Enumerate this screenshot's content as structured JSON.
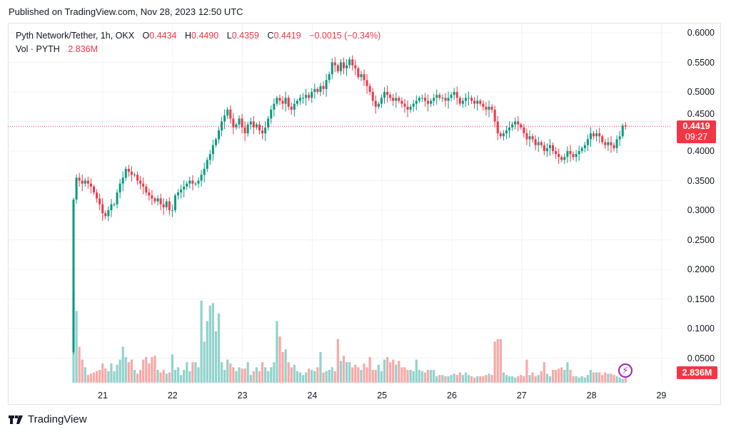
{
  "header": {
    "published": "Published on TradingView.com, Nov 28, 2023 12:50 UTC"
  },
  "legend": {
    "symbol": "Pyth Network/Tether, 1h, OKX",
    "o_label": "O",
    "o": "0.4434",
    "h_label": "H",
    "h": "0.4490",
    "l_label": "L",
    "l": "0.4359",
    "c_label": "C",
    "c": "0.4419",
    "change": "−0.0015 (−0.34%)",
    "vol_label": "Vol · PYTH",
    "vol": "2.836M"
  },
  "price_box": {
    "price": "0.4419",
    "countdown": "09:27"
  },
  "volume_box": {
    "value": "2.836M"
  },
  "footer": {
    "brand": "TradingView"
  },
  "colors": {
    "up": "#089981",
    "down": "#f23645",
    "up_vol": "#92d2cc",
    "down_vol": "#f7a9a7",
    "grid": "#f0f3fa",
    "alert": "#9c27b0"
  },
  "chart_data": {
    "type": "candlestick",
    "title": "Pyth Network/Tether, 1h, OKX",
    "interval": "1h",
    "start": "Nov 20 14:00",
    "ylim": [
      0,
      0.6
    ],
    "y_ticks": [
      "0.6000",
      "0.5500",
      "0.5000",
      "0.4500",
      "0.4000",
      "0.3500",
      "0.3000",
      "0.2500",
      "0.2000",
      "0.1500",
      "0.1000",
      "0.0500"
    ],
    "x_ticks": [
      "21",
      "22",
      "23",
      "24",
      "25",
      "26",
      "27",
      "28",
      "29"
    ],
    "first_open": 0.06,
    "last": {
      "open": 0.4434,
      "high": 0.449,
      "low": 0.4359,
      "close": 0.4419
    },
    "close": [
      0.318,
      0.355,
      0.35,
      0.345,
      0.35,
      0.345,
      0.34,
      0.33,
      0.32,
      0.31,
      0.295,
      0.29,
      0.3,
      0.31,
      0.31,
      0.33,
      0.345,
      0.355,
      0.37,
      0.365,
      0.36,
      0.36,
      0.35,
      0.345,
      0.34,
      0.33,
      0.325,
      0.32,
      0.315,
      0.32,
      0.31,
      0.305,
      0.315,
      0.3,
      0.3,
      0.325,
      0.33,
      0.335,
      0.34,
      0.345,
      0.35,
      0.345,
      0.345,
      0.35,
      0.36,
      0.37,
      0.385,
      0.395,
      0.41,
      0.42,
      0.435,
      0.45,
      0.46,
      0.47,
      0.455,
      0.44,
      0.445,
      0.455,
      0.44,
      0.43,
      0.445,
      0.45,
      0.44,
      0.445,
      0.435,
      0.43,
      0.44,
      0.455,
      0.47,
      0.48,
      0.49,
      0.485,
      0.48,
      0.49,
      0.475,
      0.47,
      0.48,
      0.485,
      0.49,
      0.49,
      0.495,
      0.49,
      0.5,
      0.505,
      0.5,
      0.51,
      0.505,
      0.52,
      0.53,
      0.55,
      0.545,
      0.535,
      0.55,
      0.54,
      0.545,
      0.555,
      0.545,
      0.54,
      0.525,
      0.53,
      0.52,
      0.51,
      0.5,
      0.485,
      0.475,
      0.48,
      0.49,
      0.5,
      0.495,
      0.49,
      0.485,
      0.49,
      0.485,
      0.48,
      0.475,
      0.47,
      0.475,
      0.48,
      0.485,
      0.49,
      0.49,
      0.485,
      0.48,
      0.485,
      0.49,
      0.495,
      0.49,
      0.49,
      0.485,
      0.49,
      0.495,
      0.5,
      0.49,
      0.48,
      0.485,
      0.49,
      0.49,
      0.485,
      0.48,
      0.485,
      0.48,
      0.475,
      0.47,
      0.475,
      0.47,
      0.45,
      0.43,
      0.425,
      0.43,
      0.435,
      0.44,
      0.445,
      0.45,
      0.445,
      0.44,
      0.43,
      0.42,
      0.425,
      0.42,
      0.41,
      0.415,
      0.41,
      0.4,
      0.405,
      0.41,
      0.4,
      0.395,
      0.39,
      0.385,
      0.39,
      0.4,
      0.395,
      0.39,
      0.395,
      0.4,
      0.405,
      0.41,
      0.42,
      0.43,
      0.425,
      0.43,
      0.425,
      0.415,
      0.41,
      0.415,
      0.41,
      0.405,
      0.42,
      0.425,
      0.4434,
      0.4419
    ],
    "volume_m": [
      35,
      28,
      14,
      9,
      6,
      3,
      3.5,
      4,
      4.5,
      5,
      7.5,
      5.5,
      4.5,
      7.5,
      4.5,
      7,
      9,
      14,
      10,
      8,
      9,
      5,
      3.5,
      5,
      9,
      10,
      7.5,
      10,
      10.5,
      5,
      4,
      5,
      3.5,
      4,
      11,
      5,
      6,
      3,
      5,
      8,
      4.5,
      8,
      8,
      6,
      32,
      16,
      24,
      30,
      31,
      20,
      27,
      8,
      5,
      9,
      7.5,
      6,
      4.5,
      6,
      5.5,
      5.5,
      8,
      3,
      4.5,
      6,
      4.5,
      8,
      6,
      4.5,
      6,
      8,
      24,
      18,
      12,
      13,
      8,
      6,
      7,
      4.5,
      4,
      3,
      4,
      5.5,
      5,
      4.5,
      6,
      12,
      4,
      4.5,
      5,
      6,
      4.5,
      17,
      8.5,
      10.5,
      8,
      8,
      6,
      7,
      6,
      5,
      7.5,
      6,
      10,
      5,
      5,
      7,
      4.5,
      9,
      10,
      8,
      9,
      7,
      8.5,
      6,
      6,
      5,
      5,
      4.5,
      9,
      5,
      4.5,
      4,
      5,
      5,
      5,
      2.5,
      3,
      3,
      2.5,
      2.5,
      3,
      3.5,
      3,
      4,
      3,
      4,
      3,
      2.5,
      2,
      2.5,
      2.5,
      2.5,
      3,
      3.5,
      3,
      16,
      17,
      17,
      4,
      3,
      2.5,
      2.5,
      2,
      2.5,
      3,
      2.5,
      9,
      3,
      4,
      2.5,
      3,
      4.5,
      8,
      3.5,
      2.5,
      5,
      5,
      5.5,
      6,
      5,
      8,
      5,
      2.5,
      2.5,
      2,
      2.5,
      2,
      3,
      5,
      4,
      4,
      4,
      3,
      4,
      3.5,
      3.5,
      3,
      2.5,
      2,
      1.5,
      2.836
    ]
  }
}
